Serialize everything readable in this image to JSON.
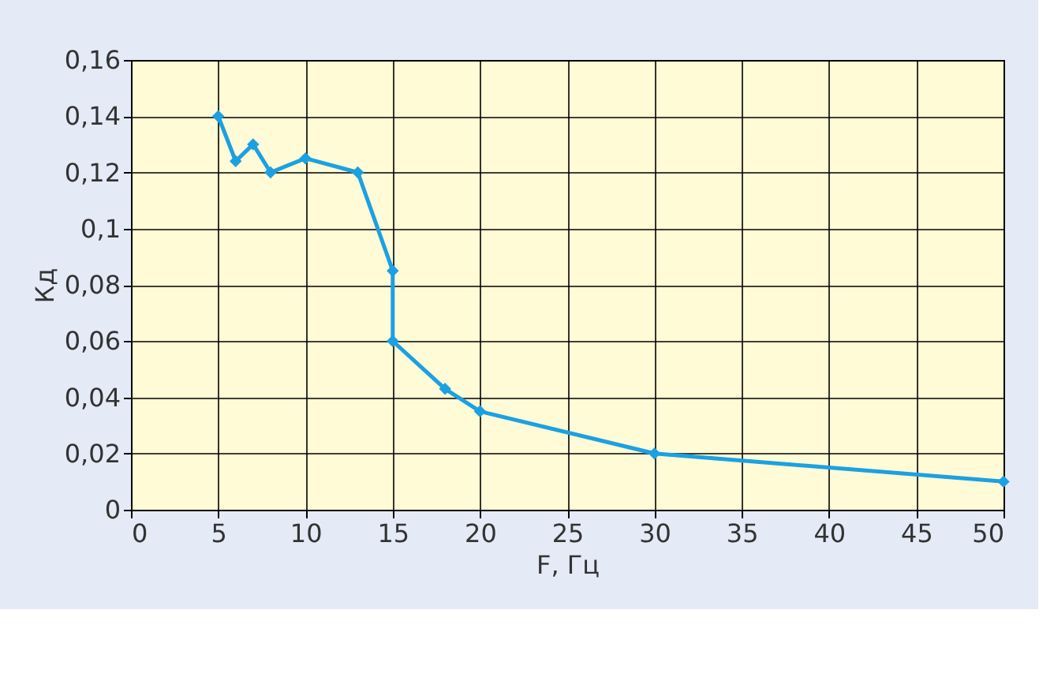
{
  "chart_data": {
    "type": "line",
    "xlabel": "F, Гц",
    "ylabel": "Кд",
    "x": [
      5,
      6,
      7,
      8,
      10,
      13,
      15,
      15,
      18,
      20,
      30,
      50
    ],
    "series": [
      {
        "color": "#1ba1e2",
        "values": [
          0.14,
          0.124,
          0.13,
          0.12,
          0.125,
          0.12,
          0.085,
          0.06,
          0.043,
          0.035,
          0.02,
          0.01
        ]
      }
    ],
    "xlim": [
      0,
      50
    ],
    "xticks": [
      0,
      5,
      10,
      15,
      20,
      25,
      30,
      35,
      40,
      45,
      50
    ],
    "ylim": [
      0,
      0.16
    ],
    "yticks": [
      0,
      {
        "value": 0.02,
        "label": "0,02"
      },
      {
        "value": 0.04,
        "label": "0,04"
      },
      {
        "value": 0.06,
        "label": "0,06"
      },
      {
        "value": 0.08,
        "label": "0,08"
      },
      {
        "value": 0.1,
        "label": "0,1"
      },
      {
        "value": 0.12,
        "label": "0,12"
      },
      {
        "value": 0.14,
        "label": "0,14"
      },
      {
        "value": 0.16,
        "label": "0,16"
      }
    ],
    "grid": true,
    "marker": "diamond",
    "line_style": "solid"
  }
}
